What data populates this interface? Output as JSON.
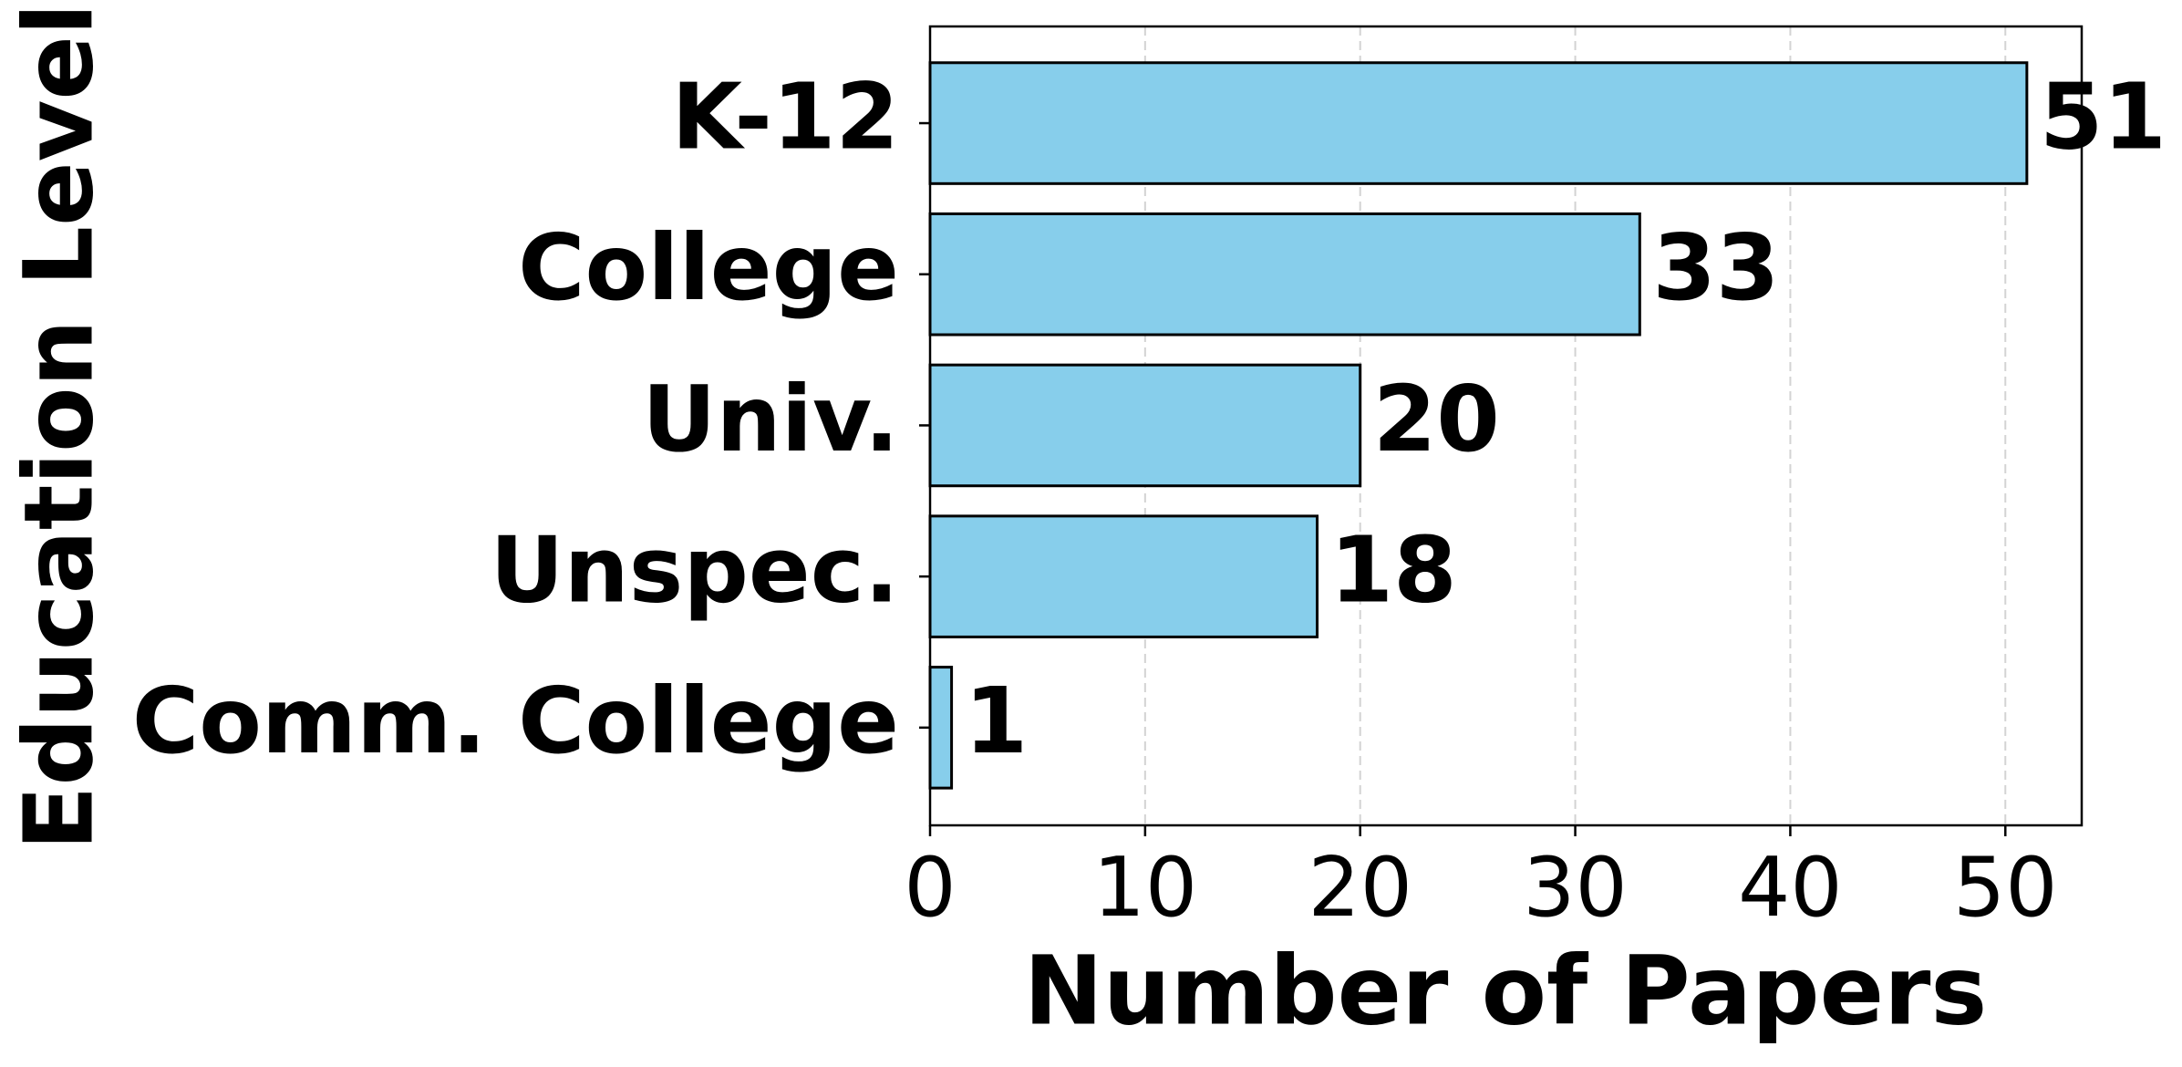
{
  "chart_data": {
    "type": "barh",
    "categories": [
      "K-12",
      "College",
      "Univ.",
      "Unspec.",
      "Comm. College"
    ],
    "values": [
      51,
      33,
      20,
      18,
      1
    ],
    "color": "#87ceeb",
    "edgecolor": "#000000",
    "xlim": [
      0,
      53.55
    ],
    "xticks": [
      0,
      10,
      20,
      30,
      40,
      50
    ],
    "xlabel": "Number of Papers",
    "ylabel": "Education Level",
    "grid": true
  }
}
